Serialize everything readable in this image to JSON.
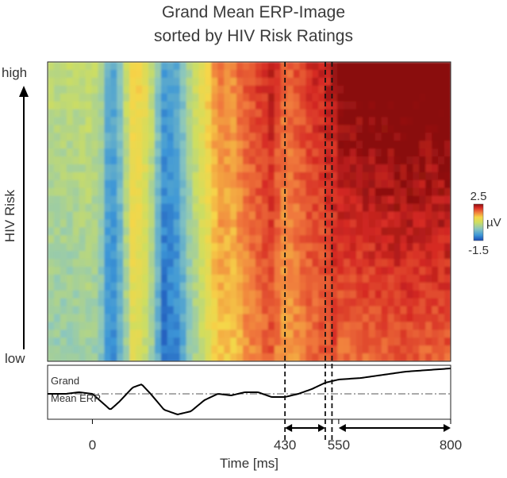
{
  "title": {
    "line1": "Grand Mean ERP-Image",
    "line2": "sorted by HIV Risk Ratings"
  },
  "chart_data": {
    "type": "heatmap",
    "title": "Grand Mean ERP-Image sorted by HIV Risk Ratings",
    "xlabel": "Time [ms]",
    "ylabel": "HIV Risk",
    "y_tick_labels": {
      "top": "high",
      "bottom": "low"
    },
    "x_ticks": [
      0,
      430,
      550,
      800
    ],
    "xlim": [
      -100,
      800
    ],
    "colorbar": {
      "max_label": "2.5",
      "min_label": "-1.5",
      "unit": "µV",
      "range": [
        -1.5,
        2.5
      ]
    },
    "marker_times": [
      430,
      520,
      535
    ],
    "windows": [
      {
        "from": 430,
        "to": 520
      },
      {
        "from": 550,
        "to": 800
      }
    ],
    "time_profile": {
      "times": [
        -100,
        -60,
        -30,
        0,
        20,
        40,
        60,
        90,
        110,
        130,
        160,
        190,
        220,
        250,
        280,
        310,
        340,
        370,
        400,
        430,
        460,
        490,
        520,
        550,
        600,
        650,
        700,
        750,
        800
      ],
      "values": [
        0.35,
        0.3,
        0.35,
        0.45,
        0.1,
        -0.8,
        -0.3,
        1.1,
        1.0,
        0.5,
        -0.8,
        -0.6,
        0.3,
        0.9,
        1.6,
        1.5,
        1.8,
        2.0,
        2.2,
        1.7,
        1.9,
        2.1,
        2.2,
        2.35,
        2.4,
        2.45,
        2.5,
        2.45,
        2.5
      ]
    },
    "risk_gradient": [
      -0.4,
      0.4
    ],
    "late_window_gradient": [
      -0.3,
      0.3
    ],
    "erp_panel": {
      "label_line1": "Grand",
      "label_line2": "Mean ERP",
      "times": [
        -100,
        -60,
        -30,
        0,
        20,
        40,
        60,
        90,
        110,
        130,
        160,
        190,
        220,
        250,
        280,
        310,
        340,
        370,
        400,
        430,
        460,
        490,
        520,
        550,
        600,
        650,
        700,
        750,
        800
      ],
      "values": [
        0.0,
        0.0,
        0.1,
        0.0,
        -0.5,
        -1.0,
        -0.5,
        0.4,
        0.6,
        0.0,
        -1.0,
        -1.3,
        -1.1,
        -0.4,
        0.0,
        -0.1,
        0.1,
        0.1,
        -0.2,
        -0.2,
        0.0,
        0.3,
        0.7,
        0.9,
        1.0,
        1.2,
        1.4,
        1.5,
        1.6
      ],
      "baseline": 0.0,
      "ylim": [
        -1.6,
        1.8
      ]
    }
  }
}
